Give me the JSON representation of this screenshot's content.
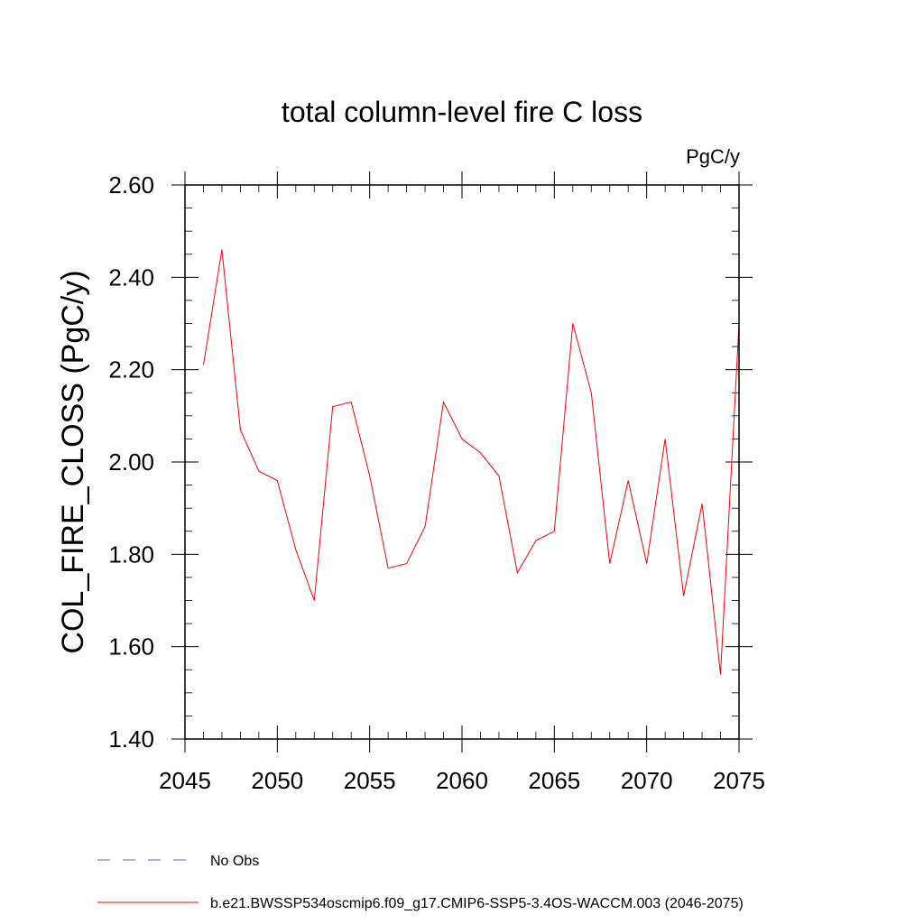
{
  "chart_data": {
    "type": "line",
    "title": "total column-level fire C loss",
    "units_label": "PgC/y",
    "ylabel": "COL_FIRE_CLOSS  (PgC/y)",
    "xlabel": "",
    "xlim": [
      2045,
      2075
    ],
    "ylim": [
      1.4,
      2.6
    ],
    "x_ticks": [
      2045,
      2050,
      2055,
      2060,
      2065,
      2070,
      2075
    ],
    "x_tick_labels": [
      "2045",
      "2050",
      "2055",
      "2060",
      "2065",
      "2070",
      "2075"
    ],
    "y_ticks": [
      1.4,
      1.6,
      1.8,
      2.0,
      2.2,
      2.4,
      2.6
    ],
    "y_tick_labels": [
      "1.40",
      "1.60",
      "1.80",
      "2.00",
      "2.20",
      "2.40",
      "2.60"
    ],
    "grid": false,
    "legend_position": "bottom",
    "legend": [
      {
        "name": "No Obs",
        "style": "dashed",
        "color": "#6a5acd"
      },
      {
        "name": "b.e21.BWSSP534oscmip6.f09_g17.CMIP6-SSP5-3.4OS-WACCM.003 (2046-2075)",
        "style": "solid",
        "color": "#ff0000"
      }
    ],
    "series": [
      {
        "name": "b.e21.BWSSP534oscmip6.f09_g17.CMIP6-SSP5-3.4OS-WACCM.003 (2046-2075)",
        "color": "#ff0000",
        "x": [
          2046,
          2047,
          2048,
          2049,
          2050,
          2051,
          2052,
          2053,
          2054,
          2055,
          2056,
          2057,
          2058,
          2059,
          2060,
          2061,
          2062,
          2063,
          2064,
          2065,
          2066,
          2067,
          2068,
          2069,
          2070,
          2071,
          2072,
          2073,
          2074,
          2075
        ],
        "y": [
          2.21,
          2.46,
          2.07,
          1.98,
          1.96,
          1.81,
          1.7,
          2.12,
          2.13,
          1.97,
          1.77,
          1.78,
          1.86,
          2.13,
          2.05,
          2.02,
          1.97,
          1.76,
          1.83,
          1.85,
          2.3,
          2.15,
          1.78,
          1.96,
          1.78,
          2.05,
          1.71,
          1.91,
          1.54,
          2.3
        ]
      }
    ]
  }
}
